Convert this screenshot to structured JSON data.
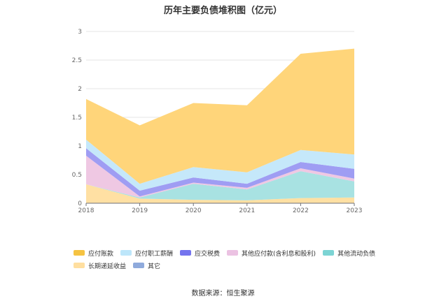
{
  "chart_data": {
    "type": "area",
    "stacked": true,
    "title": "历年主要负债堆积图（亿元）",
    "x": [
      "2018",
      "2019",
      "2020",
      "2021",
      "2022",
      "2023"
    ],
    "ylim": [
      0,
      3
    ],
    "yticks": [
      "0",
      "0.5",
      "1",
      "1.5",
      "2",
      "2.5",
      "3"
    ],
    "grid": true,
    "legend_position": "bottom",
    "series": [
      {
        "name": "长期递延收益",
        "color": "#FFE0A3",
        "values": [
          0.33,
          0.08,
          0.06,
          0.05,
          0.09,
          0.1
        ]
      },
      {
        "name": "其它",
        "color": "#8FAADC",
        "values": [
          0.0,
          0.0,
          0.0,
          0.0,
          0.0,
          0.0
        ]
      },
      {
        "name": "其他流动负债",
        "color": "#A8E2E2",
        "values": [
          0.0,
          0.02,
          0.28,
          0.19,
          0.47,
          0.28
        ]
      },
      {
        "name": "其他应付款(含利息和股利)",
        "color": "#EFC8E3",
        "values": [
          0.5,
          0.02,
          0.02,
          0.03,
          0.05,
          0.05
        ]
      },
      {
        "name": "应交税费",
        "color": "#9F9DF3",
        "values": [
          0.13,
          0.1,
          0.09,
          0.07,
          0.11,
          0.17
        ]
      },
      {
        "name": "应付职工薪酬",
        "color": "#C5E8FA",
        "values": [
          0.15,
          0.12,
          0.18,
          0.2,
          0.21,
          0.25
        ]
      },
      {
        "name": "应付账款",
        "color": "#FFD57A",
        "values": [
          0.71,
          1.02,
          1.12,
          1.17,
          1.68,
          1.85
        ]
      }
    ]
  },
  "legend": [
    [
      {
        "label": "应付账款",
        "color": "#F5C342"
      },
      {
        "label": "应付职工薪酬",
        "color": "#BDE6FA"
      },
      {
        "label": "应交税费",
        "color": "#7474EE"
      },
      {
        "label": "其他应付款(含利息和股利)",
        "color": "#EBC2E2"
      },
      {
        "label": "其他流动负债",
        "color": "#7CD4D4"
      }
    ],
    [
      {
        "label": "长期递延收益",
        "color": "#FFDFA0"
      },
      {
        "label": "其它",
        "color": "#8FAADC"
      }
    ]
  ],
  "source": "数据来源：恒生聚源"
}
